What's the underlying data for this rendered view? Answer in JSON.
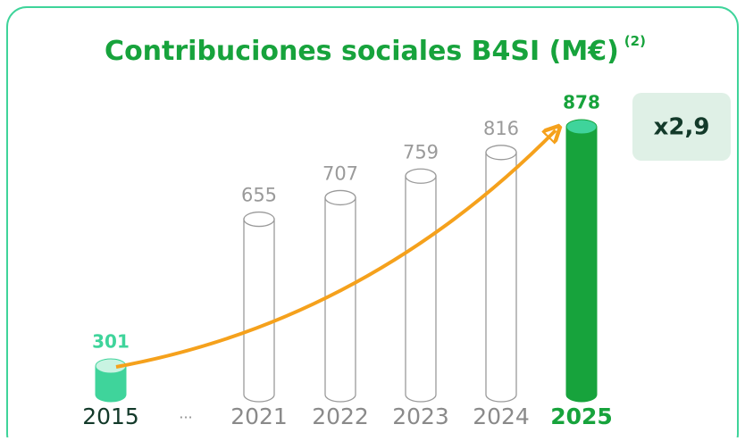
{
  "chart_data": {
    "type": "cylinder",
    "title": "Contribuciones sociales B4SI (M€)",
    "title_note": "(2)",
    "categories": [
      "2015",
      "...",
      "2021",
      "2022",
      "2023",
      "2024",
      "2025"
    ],
    "values": [
      301,
      null,
      655,
      707,
      759,
      816,
      878
    ],
    "colors": [
      "#3fd49b",
      null,
      "#ffffff",
      "#ffffff",
      "#ffffff",
      "#ffffff",
      "#17a33c"
    ],
    "annotation": "x2,9"
  }
}
